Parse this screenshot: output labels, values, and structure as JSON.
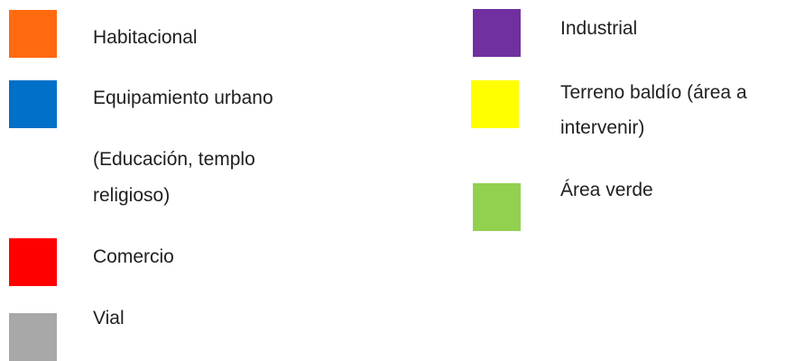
{
  "legend": {
    "habitacional": {
      "label": "Habitacional",
      "color": "#FF6A10"
    },
    "equipamiento": {
      "label": "Equipamiento urbano",
      "note_line1": "(Educación,  templo",
      "note_line2": "religioso)",
      "color": "#0070C8"
    },
    "comercio": {
      "label": "Comercio",
      "color": "#FF0000"
    },
    "vial": {
      "label": "Vial",
      "color": "#A8A8A8"
    },
    "industrial": {
      "label": "Industrial",
      "color": "#7030A0"
    },
    "terreno": {
      "label_line1": "Terreno baldío (área a",
      "label_line2": "intervenir)",
      "color": "#FFFF00"
    },
    "area_verde": {
      "label": "Área verde",
      "color": "#92D050"
    }
  }
}
